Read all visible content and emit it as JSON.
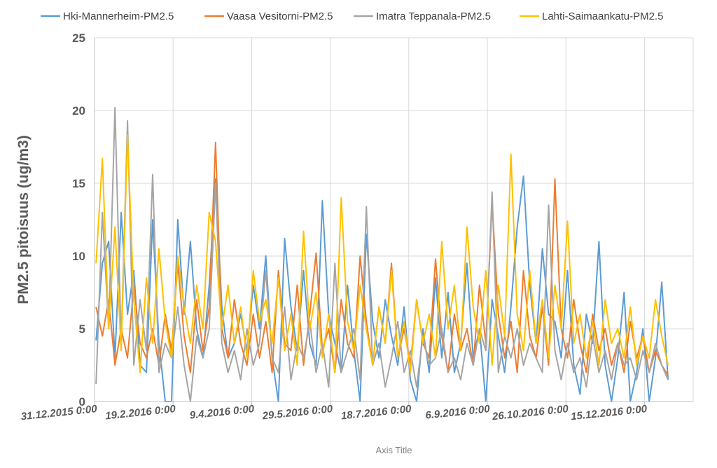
{
  "chart_data": {
    "type": "line",
    "title": "",
    "xlabel": "Axis Title",
    "ylabel": "PM2.5 pitoisuus (ug/m3)",
    "ylim": [
      0,
      25
    ],
    "yticks": [
      0,
      5,
      10,
      15,
      20,
      25
    ],
    "xlim": [
      "2015-12-31",
      "2017-01-15"
    ],
    "xticks": [
      {
        "date": "2015-12-31",
        "label": "31.12.2015 0:00"
      },
      {
        "date": "2016-02-19",
        "label": "19.2.2016 0:00"
      },
      {
        "date": "2016-04-09",
        "label": "9.4.2016 0:00"
      },
      {
        "date": "2016-05-29",
        "label": "29.5.2016 0:00"
      },
      {
        "date": "2016-07-18",
        "label": "18.7.2016 0:00"
      },
      {
        "date": "2016-09-06",
        "label": "6.9.2016 0:00"
      },
      {
        "date": "2016-10-26",
        "label": "26.10.2016 0:00"
      },
      {
        "date": "2016-12-15",
        "label": "15.12.2016 0:00"
      }
    ],
    "grid": true,
    "legend_position": "top",
    "x": [
      "2016-01-01",
      "2016-01-05",
      "2016-01-09",
      "2016-01-13",
      "2016-01-17",
      "2016-01-21",
      "2016-01-25",
      "2016-01-29",
      "2016-02-02",
      "2016-02-06",
      "2016-02-10",
      "2016-02-14",
      "2016-02-18",
      "2016-02-22",
      "2016-02-26",
      "2016-03-01",
      "2016-03-05",
      "2016-03-09",
      "2016-03-13",
      "2016-03-17",
      "2016-03-21",
      "2016-03-25",
      "2016-03-29",
      "2016-04-02",
      "2016-04-06",
      "2016-04-10",
      "2016-04-14",
      "2016-04-18",
      "2016-04-22",
      "2016-04-26",
      "2016-04-30",
      "2016-05-04",
      "2016-05-08",
      "2016-05-12",
      "2016-05-16",
      "2016-05-20",
      "2016-05-24",
      "2016-05-28",
      "2016-06-01",
      "2016-06-05",
      "2016-06-09",
      "2016-06-13",
      "2016-06-17",
      "2016-06-21",
      "2016-06-25",
      "2016-06-29",
      "2016-07-03",
      "2016-07-07",
      "2016-07-11",
      "2016-07-15",
      "2016-07-19",
      "2016-07-23",
      "2016-07-27",
      "2016-07-31",
      "2016-08-04",
      "2016-08-08",
      "2016-08-12",
      "2016-08-16",
      "2016-08-20",
      "2016-08-24",
      "2016-08-28",
      "2016-09-01",
      "2016-09-05",
      "2016-09-09",
      "2016-09-13",
      "2016-09-17",
      "2016-09-21",
      "2016-09-25",
      "2016-09-29",
      "2016-10-03",
      "2016-10-07",
      "2016-10-11",
      "2016-10-15",
      "2016-10-19",
      "2016-10-23",
      "2016-10-27",
      "2016-10-31",
      "2016-11-04",
      "2016-11-08",
      "2016-11-12",
      "2016-11-16",
      "2016-11-20",
      "2016-11-24",
      "2016-11-28",
      "2016-12-02",
      "2016-12-06",
      "2016-12-10",
      "2016-12-14",
      "2016-12-18",
      "2016-12-22",
      "2016-12-26",
      "2016-12-30"
    ],
    "series": [
      {
        "name": "Hki-Mannerheim-PM2.5",
        "color": "#5B9BD5",
        "values": [
          4.2,
          9.5,
          11.0,
          3.0,
          13.0,
          6.0,
          9.0,
          2.5,
          2.0,
          12.5,
          4.0,
          0.0,
          0.0,
          12.5,
          6.0,
          11.0,
          5.0,
          3.0,
          8.0,
          15.3,
          6.5,
          3.0,
          4.0,
          6.0,
          3.5,
          8.0,
          5.0,
          10.0,
          3.0,
          0.0,
          11.2,
          6.5,
          3.5,
          9.0,
          4.0,
          2.5,
          13.8,
          6.0,
          4.0,
          2.0,
          8.0,
          3.5,
          0.0,
          11.5,
          5.5,
          3.0,
          7.0,
          4.5,
          2.5,
          6.5,
          1.5,
          0.0,
          5.0,
          2.0,
          8.5,
          3.0,
          7.5,
          2.0,
          4.0,
          9.5,
          3.0,
          5.0,
          0.0,
          7.0,
          4.5,
          2.0,
          6.5,
          12.0,
          15.5,
          8.0,
          4.0,
          10.5,
          6.0,
          5.5,
          3.0,
          9.0,
          2.5,
          0.5,
          6.0,
          4.0,
          11.0,
          2.5,
          0.0,
          3.0,
          7.5,
          0.0,
          2.0,
          5.0,
          0.0,
          3.0,
          8.2,
          1.5
        ]
      },
      {
        "name": "Vaasa Vesitorni-PM2.5",
        "color": "#ED7D31",
        "values": [
          6.5,
          4.5,
          7.0,
          2.5,
          5.0,
          3.0,
          8.0,
          4.0,
          3.0,
          5.0,
          2.5,
          6.0,
          3.5,
          9.5,
          4.5,
          2.0,
          7.0,
          3.5,
          6.5,
          17.8,
          5.0,
          3.0,
          7.0,
          4.0,
          2.5,
          6.0,
          3.0,
          5.5,
          2.0,
          9.0,
          4.0,
          3.5,
          8.0,
          2.5,
          6.0,
          10.2,
          3.5,
          5.0,
          2.0,
          7.0,
          4.0,
          3.0,
          10.0,
          5.5,
          2.5,
          6.5,
          4.0,
          9.5,
          3.0,
          5.0,
          2.5,
          7.0,
          4.0,
          3.0,
          9.8,
          4.5,
          2.0,
          6.0,
          3.5,
          5.0,
          2.5,
          8.0,
          4.0,
          13.7,
          6.0,
          3.0,
          5.5,
          2.0,
          9.0,
          4.5,
          3.0,
          6.5,
          2.5,
          15.3,
          5.0,
          3.0,
          7.0,
          4.0,
          2.0,
          6.0,
          3.5,
          5.0,
          2.5,
          4.0,
          2.0,
          5.5,
          3.0,
          4.5,
          2.0,
          3.5,
          2.5,
          1.8
        ]
      },
      {
        "name": "Imatra Teppanala-PM2.5",
        "color": "#A5A5A5",
        "values": [
          1.2,
          13.0,
          5.0,
          20.2,
          4.0,
          19.3,
          2.5,
          7.0,
          3.5,
          15.6,
          2.0,
          4.0,
          3.0,
          6.5,
          2.5,
          0.0,
          4.5,
          3.0,
          5.0,
          15.0,
          4.0,
          2.0,
          3.5,
          1.5,
          5.0,
          2.5,
          4.0,
          9.0,
          3.0,
          2.0,
          6.5,
          1.5,
          4.0,
          3.0,
          5.5,
          2.0,
          4.0,
          1.0,
          9.5,
          2.0,
          3.5,
          5.0,
          1.5,
          13.4,
          2.5,
          4.0,
          1.0,
          3.0,
          5.5,
          2.0,
          3.5,
          1.0,
          4.5,
          2.5,
          3.0,
          5.0,
          2.0,
          3.0,
          1.5,
          4.0,
          2.5,
          5.0,
          3.5,
          14.4,
          2.0,
          4.5,
          3.0,
          5.0,
          2.5,
          4.0,
          3.0,
          2.0,
          13.5,
          3.5,
          1.5,
          4.0,
          2.0,
          3.0,
          1.0,
          4.5,
          2.0,
          3.5,
          1.5,
          4.0,
          2.5,
          3.0,
          1.5,
          3.5,
          2.0,
          4.0,
          2.5,
          1.5
        ]
      },
      {
        "name": "Lahti-Saimaankatu-PM2.5",
        "color": "#FFC000",
        "values": [
          9.5,
          16.7,
          5.0,
          12.0,
          3.5,
          18.3,
          7.0,
          2.0,
          8.5,
          4.0,
          10.5,
          5.5,
          3.0,
          10.0,
          6.5,
          4.0,
          8.0,
          5.0,
          13.0,
          11.0,
          5.0,
          8.0,
          4.0,
          6.5,
          3.0,
          9.0,
          5.5,
          7.0,
          4.0,
          8.5,
          3.5,
          6.0,
          2.5,
          11.7,
          5.0,
          7.5,
          3.0,
          6.0,
          2.0,
          14.0,
          5.5,
          3.5,
          8.0,
          5.0,
          2.5,
          6.5,
          4.0,
          9.0,
          3.0,
          5.5,
          2.0,
          7.0,
          4.0,
          6.0,
          3.0,
          11.0,
          5.0,
          8.0,
          3.5,
          12.0,
          6.5,
          4.0,
          9.0,
          2.5,
          8.0,
          4.5,
          17.0,
          6.0,
          3.5,
          9.0,
          4.0,
          7.0,
          3.0,
          8.0,
          5.0,
          12.4,
          4.0,
          6.0,
          3.0,
          5.5,
          2.5,
          7.0,
          4.0,
          5.0,
          3.0,
          6.5,
          2.5,
          4.5,
          3.0,
          7.0,
          4.5,
          2.5
        ]
      }
    ]
  }
}
